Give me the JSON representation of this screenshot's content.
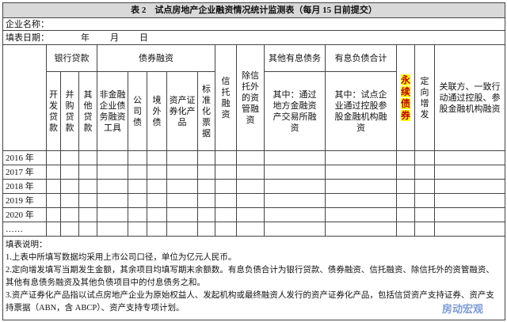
{
  "title": "表 2　试点房地产企业融资情况统计监测表（每月 15 日前提交）",
  "company_label": "企业名称：",
  "date_label": "填表日期：",
  "date_parts": [
    "年",
    "月",
    "日"
  ],
  "groups": [
    {
      "label": "银行贷款",
      "columns": [
        "开发贷款",
        "并购贷款",
        "其他贷款"
      ]
    },
    {
      "label": "债券融资",
      "columns": [
        "非金融企业债务融资工具",
        "公司债",
        "境外债",
        "资产证券化产品",
        "标准化票据"
      ]
    },
    {
      "label": "信托融资"
    },
    {
      "label": "除信托外的资管融资"
    },
    {
      "label": "其他有息债务",
      "columns": [
        "其中：通过地方金融资产交易所融资"
      ]
    },
    {
      "label": "有息负债合计",
      "columns": [
        "其中：试点企业通过控股参股金融机构融资"
      ]
    },
    {
      "label": "永续债券",
      "highlight": true
    },
    {
      "label": "定向增发"
    },
    {
      "label": "关联方、一致行动通过控股、参股金融机构融资"
    }
  ],
  "rows": [
    "2016 年",
    "2017 年",
    "2018 年",
    "2019 年",
    "2020 年",
    "……"
  ],
  "notes": {
    "title": "填表说明：",
    "items": [
      "1.上表中所填写数据均采用上市公司口径，单位为亿元人民币。",
      "2.定向增发填写当期发生金额，其余项目均填写期末余额数。有息负债合计为银行贷款、债券融资、信托融资、除信托外的资管融资、其他有息债务融资及其他负债项目中的付息债务之和。",
      "3.资产证券化产品指以试点房地产企业为原始权益人、发起机构或最终融资人发行的资产证券化产品，包括信贷资产支持证券、资产支持票据（ABN，含 ABCP）、资产支持专项计划。"
    ]
  },
  "watermark": "房动宏观"
}
